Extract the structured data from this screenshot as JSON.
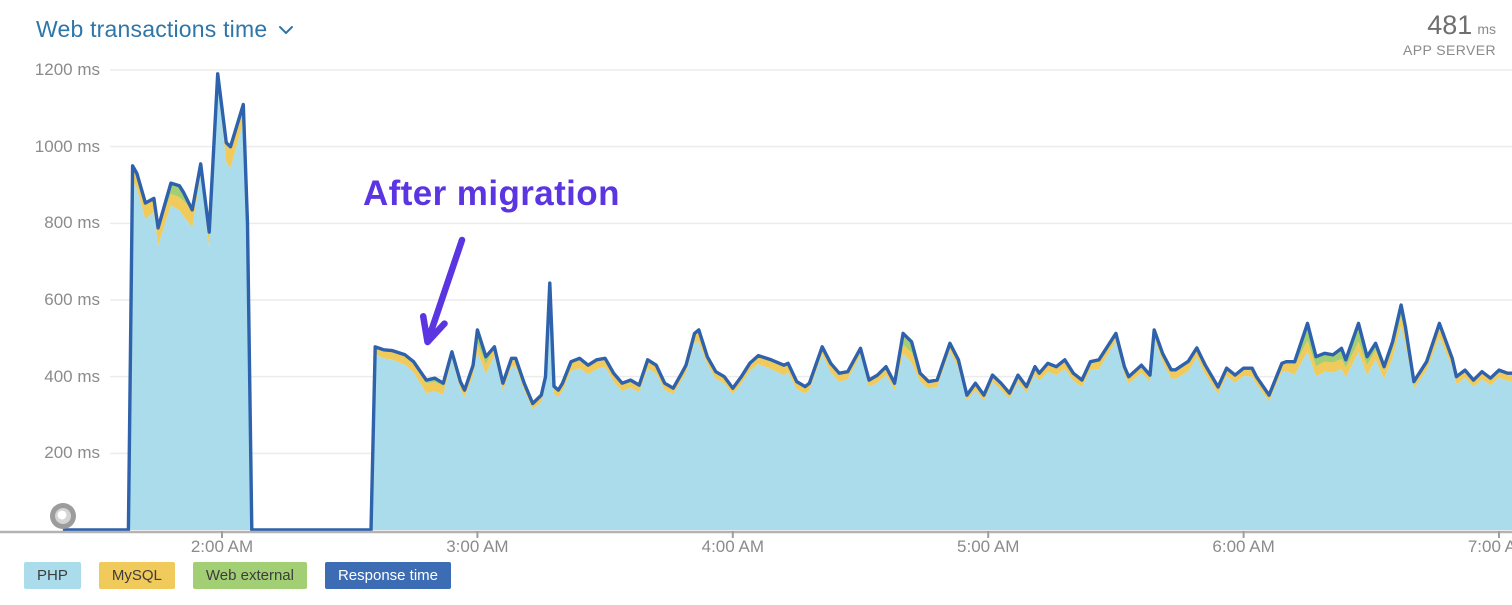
{
  "header": {
    "title": "Web transactions time",
    "metric_value": "481",
    "metric_unit": "ms",
    "metric_label": "APP SERVER"
  },
  "annotation": {
    "text": "After migration",
    "color": "#5b35e1"
  },
  "legend": {
    "items": [
      {
        "label": "PHP",
        "color": "#aadcec",
        "text_color": "#3d3d3d"
      },
      {
        "label": "MySQL",
        "color": "#f0ca5a",
        "text_color": "#3d3d3d"
      },
      {
        "label": "Web external",
        "color": "#a2cf74",
        "text_color": "#3d3d3d"
      },
      {
        "label": "Response time",
        "color": "#3c6cb4",
        "text_color": "#ffffff"
      }
    ]
  },
  "colors": {
    "title": "#2e76a8",
    "metric_value": "#6f6f6f",
    "metric_label": "#8a8a8a",
    "axis_text": "#8b8b8b",
    "gridline": "#ececec",
    "axis_line": "#b3b3b3",
    "tick": "#9e9e9e",
    "php": "#aadcec",
    "mysql": "#f0ca5a",
    "web_external": "#a2cf74",
    "response_line": "#2e62ad",
    "eye_outer": "#9c9c9c",
    "eye_mid": "#d4d4d4",
    "eye_center": "#ffffff"
  },
  "chart_data": {
    "type": "area",
    "stacked": true,
    "title": "Web transactions time",
    "unit": "ms",
    "y_axis": {
      "min": 0,
      "max": 1200,
      "values": [
        1200,
        1000,
        800,
        600,
        400,
        200
      ],
      "labels": [
        "1200 ms",
        "1000 ms",
        "800 ms",
        "600 ms",
        "400 ms",
        "200 ms"
      ]
    },
    "x_axis": {
      "labels": [
        "2:00 AM",
        "3:00 AM",
        "4:00 AM",
        "5:00 AM",
        "6:00 AM",
        "7:00 AM"
      ],
      "minutes": [
        120,
        180,
        240,
        300,
        360,
        420
      ],
      "start_minute": 83,
      "end_minute": 422
    },
    "series": [
      {
        "name": "PHP",
        "role": "stacked-area-remainder",
        "color": "#aadcec"
      },
      {
        "name": "MySQL",
        "role": "stacked-area",
        "color": "#f0ca5a"
      },
      {
        "name": "Web external",
        "role": "stacked-area",
        "color": "#a2cf74"
      },
      {
        "name": "Response time",
        "role": "total-line",
        "color": "#2e62ad"
      }
    ],
    "points": {
      "t": [
        83,
        97,
        98,
        99,
        100,
        102,
        104,
        105,
        108,
        110,
        111,
        113,
        115,
        117,
        119,
        121,
        122,
        125,
        126,
        127,
        155,
        156,
        158,
        160,
        163,
        165,
        168,
        170,
        172,
        174,
        176,
        177,
        179,
        180,
        182,
        184,
        186,
        188,
        189,
        191,
        193,
        195,
        196,
        197,
        198,
        199,
        200,
        202,
        204,
        206,
        208,
        210,
        212,
        214,
        216,
        218,
        220,
        222,
        224,
        226,
        228,
        229,
        231,
        232,
        234,
        236,
        238,
        240,
        242,
        244,
        246,
        249,
        252,
        253,
        255,
        257,
        258,
        261,
        263,
        265,
        267,
        270,
        272,
        274,
        276,
        278,
        280,
        282,
        284,
        286,
        288,
        291,
        293,
        295,
        297,
        299,
        301,
        303,
        305,
        307,
        309,
        311,
        312,
        314,
        316,
        318,
        320,
        322,
        324,
        326,
        330,
        332,
        333,
        336,
        338,
        339,
        341,
        343,
        344,
        347,
        349,
        351,
        354,
        356,
        358,
        360,
        362,
        363,
        366,
        369,
        370,
        372,
        375,
        377,
        379,
        381,
        383,
        384,
        387,
        389,
        391,
        393,
        395,
        397,
        398,
        400,
        403,
        406,
        409,
        410,
        412,
        414,
        416,
        418,
        420,
        422
      ],
      "response": [
        0,
        0,
        0,
        950,
        930,
        853,
        865,
        788,
        905,
        898,
        880,
        835,
        955,
        777,
        1190,
        1010,
        1000,
        1110,
        800,
        0,
        0,
        478,
        470,
        468,
        457,
        439,
        391,
        396,
        383,
        465,
        387,
        365,
        430,
        522,
        452,
        478,
        383,
        448,
        448,
        383,
        330,
        352,
        400,
        644,
        375,
        365,
        383,
        439,
        448,
        430,
        444,
        448,
        409,
        383,
        391,
        378,
        444,
        430,
        383,
        370,
        409,
        430,
        513,
        522,
        452,
        413,
        400,
        370,
        400,
        435,
        455,
        444,
        430,
        435,
        387,
        374,
        383,
        478,
        435,
        409,
        413,
        474,
        391,
        404,
        426,
        383,
        513,
        491,
        409,
        387,
        391,
        487,
        444,
        352,
        383,
        352,
        404,
        383,
        357,
        404,
        374,
        426,
        409,
        435,
        426,
        444,
        409,
        391,
        439,
        444,
        513,
        426,
        400,
        430,
        404,
        522,
        460,
        418,
        418,
        440,
        475,
        430,
        373,
        422,
        404,
        422,
        422,
        400,
        352,
        435,
        439,
        439,
        539,
        452,
        461,
        457,
        474,
        444,
        539,
        452,
        487,
        426,
        491,
        587,
        530,
        387,
        439,
        539,
        448,
        400,
        417,
        391,
        413,
        396,
        417,
        409
      ],
      "mysql": [
        0,
        0,
        0,
        38,
        40,
        42,
        35,
        45,
        30,
        34,
        40,
        45,
        28,
        40,
        25,
        50,
        55,
        45,
        30,
        0,
        0,
        20,
        22,
        24,
        26,
        28,
        26,
        24,
        22,
        18,
        20,
        18,
        20,
        22,
        25,
        22,
        20,
        22,
        22,
        18,
        15,
        18,
        20,
        30,
        20,
        18,
        20,
        24,
        26,
        24,
        24,
        22,
        22,
        20,
        20,
        18,
        22,
        22,
        18,
        16,
        18,
        20,
        24,
        22,
        20,
        18,
        18,
        16,
        18,
        20,
        22,
        24,
        26,
        24,
        20,
        18,
        18,
        20,
        24,
        22,
        20,
        18,
        18,
        20,
        22,
        18,
        22,
        26,
        22,
        18,
        18,
        20,
        22,
        15,
        18,
        15,
        18,
        18,
        15,
        18,
        16,
        20,
        20,
        22,
        22,
        24,
        20,
        18,
        22,
        24,
        20,
        20,
        18,
        20,
        18,
        20,
        22,
        22,
        24,
        26,
        24,
        24,
        18,
        20,
        20,
        20,
        22,
        20,
        16,
        22,
        24,
        26,
        28,
        26,
        26,
        26,
        26,
        26,
        26,
        26,
        24,
        22,
        22,
        24,
        24,
        18,
        22,
        24,
        22,
        20,
        20,
        18,
        20,
        18,
        20,
        20
      ],
      "web_external": [
        0,
        0,
        0,
        0,
        0,
        0,
        0,
        0,
        28,
        30,
        22,
        0,
        0,
        0,
        0,
        0,
        0,
        0,
        0,
        0,
        0,
        0,
        0,
        0,
        0,
        0,
        8,
        10,
        8,
        0,
        0,
        0,
        8,
        35,
        20,
        0,
        0,
        0,
        0,
        0,
        0,
        0,
        0,
        0,
        0,
        0,
        0,
        0,
        0,
        0,
        0,
        0,
        0,
        0,
        0,
        0,
        0,
        0,
        0,
        0,
        0,
        0,
        0,
        10,
        0,
        0,
        0,
        0,
        0,
        0,
        0,
        0,
        0,
        0,
        0,
        0,
        0,
        0,
        0,
        0,
        0,
        0,
        0,
        0,
        0,
        0,
        30,
        28,
        0,
        0,
        0,
        0,
        0,
        0,
        0,
        0,
        0,
        0,
        0,
        0,
        0,
        0,
        0,
        0,
        0,
        0,
        0,
        0,
        0,
        0,
        0,
        0,
        0,
        0,
        0,
        0,
        0,
        0,
        0,
        0,
        0,
        0,
        0,
        0,
        0,
        0,
        0,
        0,
        0,
        0,
        0,
        8,
        45,
        25,
        22,
        20,
        28,
        20,
        48,
        22,
        18,
        10,
        20,
        30,
        20,
        0,
        0,
        12,
        0,
        0,
        0,
        0,
        0,
        0,
        0,
        0
      ]
    }
  }
}
